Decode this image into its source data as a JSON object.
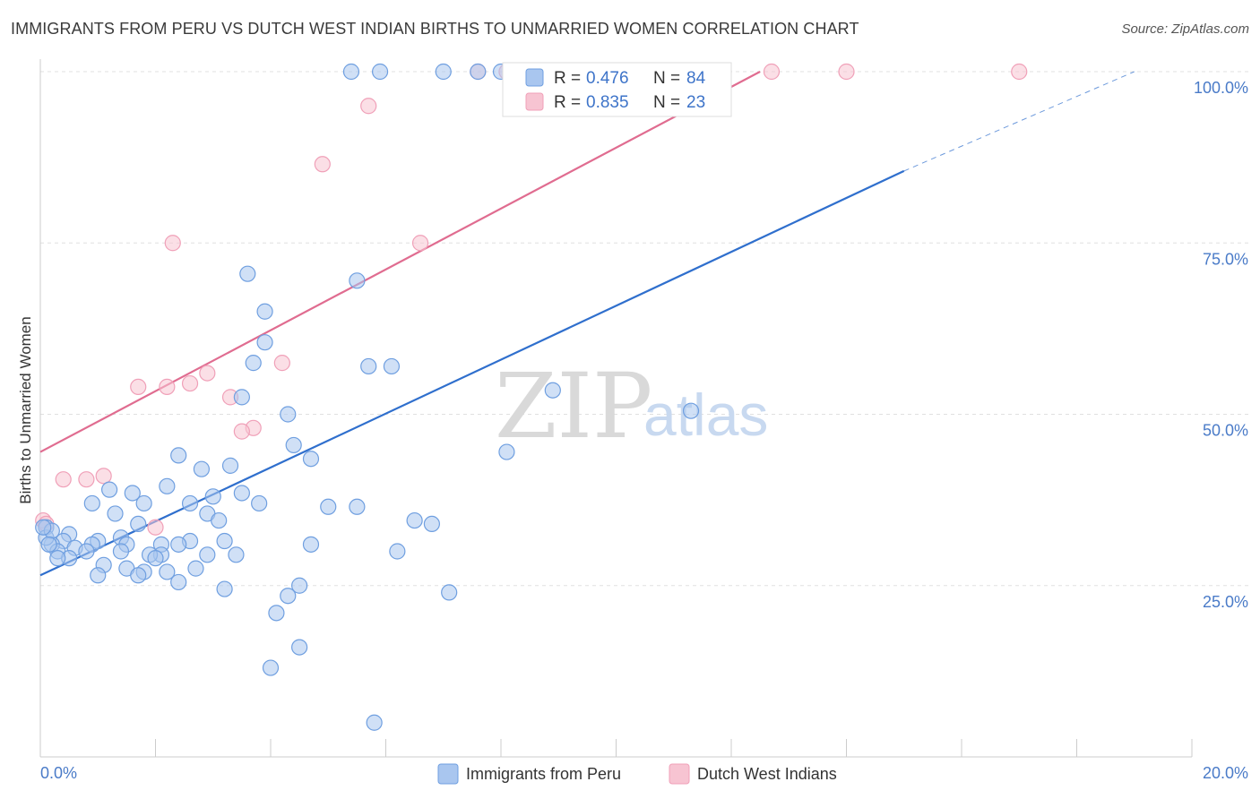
{
  "header": {
    "title": "IMMIGRANTS FROM PERU VS DUTCH WEST INDIAN BIRTHS TO UNMARRIED WOMEN CORRELATION CHART",
    "source": "Source: ZipAtlas.com"
  },
  "watermark": {
    "zip": "ZIP",
    "atlas": "atlas"
  },
  "legend": {
    "r_label": "R =",
    "n_label": "N =",
    "series": [
      {
        "r": "0.476",
        "n": "84"
      },
      {
        "r": "0.835",
        "n": "23"
      }
    ]
  },
  "chart_data": {
    "type": "scatter",
    "title": "IMMIGRANTS FROM PERU VS DUTCH WEST INDIAN BIRTHS TO UNMARRIED WOMEN CORRELATION CHART",
    "xlabel": "",
    "ylabel": "Births to Unmarried Women",
    "xlim": [
      0,
      20
    ],
    "ylim": [
      0,
      100
    ],
    "x_tick_labels": [
      "0.0%",
      "20.0%"
    ],
    "y_tick_labels": [
      "100.0%",
      "75.0%",
      "50.0%",
      "25.0%"
    ],
    "y_tick_values": [
      100,
      75,
      50,
      25
    ],
    "grid": true,
    "legend_position": "top-center",
    "series": [
      {
        "name": "Immigrants from Peru",
        "color": "#6f9fe0",
        "fill": "#a9c6ef",
        "line_color": "#2f6fcd",
        "points": [
          [
            5.4,
            100
          ],
          [
            5.9,
            100
          ],
          [
            7.0,
            100
          ],
          [
            7.6,
            100
          ],
          [
            8.0,
            100
          ],
          [
            3.6,
            70.5
          ],
          [
            5.5,
            69.5
          ],
          [
            3.9,
            65
          ],
          [
            3.9,
            60.5
          ],
          [
            3.7,
            57.5
          ],
          [
            5.7,
            57
          ],
          [
            6.1,
            57
          ],
          [
            8.9,
            53.5
          ],
          [
            11.3,
            50.5
          ],
          [
            3.5,
            52.5
          ],
          [
            4.3,
            50
          ],
          [
            4.4,
            45.5
          ],
          [
            8.1,
            44.5
          ],
          [
            4.7,
            43.5
          ],
          [
            2.4,
            44
          ],
          [
            3.3,
            42.5
          ],
          [
            2.8,
            42
          ],
          [
            1.2,
            39
          ],
          [
            2.2,
            39.5
          ],
          [
            1.6,
            38.5
          ],
          [
            3.5,
            38.5
          ],
          [
            3.8,
            37
          ],
          [
            3.0,
            38
          ],
          [
            1.8,
            37
          ],
          [
            2.6,
            37
          ],
          [
            0.9,
            37
          ],
          [
            5.0,
            36.5
          ],
          [
            5.5,
            36.5
          ],
          [
            1.3,
            35.5
          ],
          [
            2.9,
            35.5
          ],
          [
            3.1,
            34.5
          ],
          [
            6.5,
            34.5
          ],
          [
            6.8,
            34
          ],
          [
            1.7,
            34
          ],
          [
            0.5,
            32.5
          ],
          [
            1.4,
            32
          ],
          [
            3.2,
            31.5
          ],
          [
            0.4,
            31.5
          ],
          [
            2.6,
            31.5
          ],
          [
            1.0,
            31.5
          ],
          [
            1.5,
            31
          ],
          [
            2.1,
            31
          ],
          [
            0.2,
            31
          ],
          [
            0.9,
            31
          ],
          [
            4.7,
            31
          ],
          [
            2.4,
            31
          ],
          [
            0.6,
            30.5
          ],
          [
            0.8,
            30
          ],
          [
            0.3,
            30
          ],
          [
            1.4,
            30
          ],
          [
            2.1,
            29.5
          ],
          [
            1.9,
            29.5
          ],
          [
            2.9,
            29.5
          ],
          [
            3.4,
            29.5
          ],
          [
            2.0,
            29
          ],
          [
            0.5,
            29
          ],
          [
            0.3,
            29
          ],
          [
            1.1,
            28
          ],
          [
            1.5,
            27.5
          ],
          [
            2.2,
            27
          ],
          [
            1.8,
            27
          ],
          [
            1.7,
            26.5
          ],
          [
            2.7,
            27.5
          ],
          [
            1.0,
            26.5
          ],
          [
            6.2,
            30
          ],
          [
            2.4,
            25.5
          ],
          [
            4.5,
            25
          ],
          [
            3.2,
            24.5
          ],
          [
            7.1,
            24
          ],
          [
            4.3,
            23.5
          ],
          [
            4.1,
            21
          ],
          [
            4.5,
            16
          ],
          [
            4.0,
            13
          ],
          [
            5.8,
            5
          ],
          [
            0.1,
            33.5
          ],
          [
            0.1,
            32
          ],
          [
            0.2,
            33
          ],
          [
            0.05,
            33.5
          ],
          [
            0.15,
            31
          ]
        ],
        "trendline": {
          "x0": 0,
          "y0": 26.5,
          "x1": 15.0,
          "y1": 85.5,
          "dashed_to_x": 19.0,
          "dashed_to_y": 100
        }
      },
      {
        "name": "Dutch West Indians",
        "color": "#f0a0b8",
        "fill": "#f7c4d2",
        "line_color": "#e06c90",
        "points": [
          [
            7.6,
            100
          ],
          [
            8.1,
            100
          ],
          [
            12.7,
            100
          ],
          [
            14.0,
            100
          ],
          [
            17.0,
            100
          ],
          [
            5.7,
            95
          ],
          [
            4.9,
            86.5
          ],
          [
            2.3,
            75
          ],
          [
            6.6,
            75
          ],
          [
            2.9,
            56
          ],
          [
            4.2,
            57.5
          ],
          [
            2.6,
            54.5
          ],
          [
            1.7,
            54
          ],
          [
            2.2,
            54
          ],
          [
            3.3,
            52.5
          ],
          [
            3.7,
            48
          ],
          [
            3.5,
            47.5
          ],
          [
            1.1,
            41
          ],
          [
            0.4,
            40.5
          ],
          [
            0.8,
            40.5
          ],
          [
            2.0,
            33.5
          ],
          [
            0.05,
            34.5
          ],
          [
            0.1,
            34
          ]
        ],
        "trendline": {
          "x0": 0,
          "y0": 44.5,
          "x1": 12.5,
          "y1": 100
        }
      }
    ]
  }
}
